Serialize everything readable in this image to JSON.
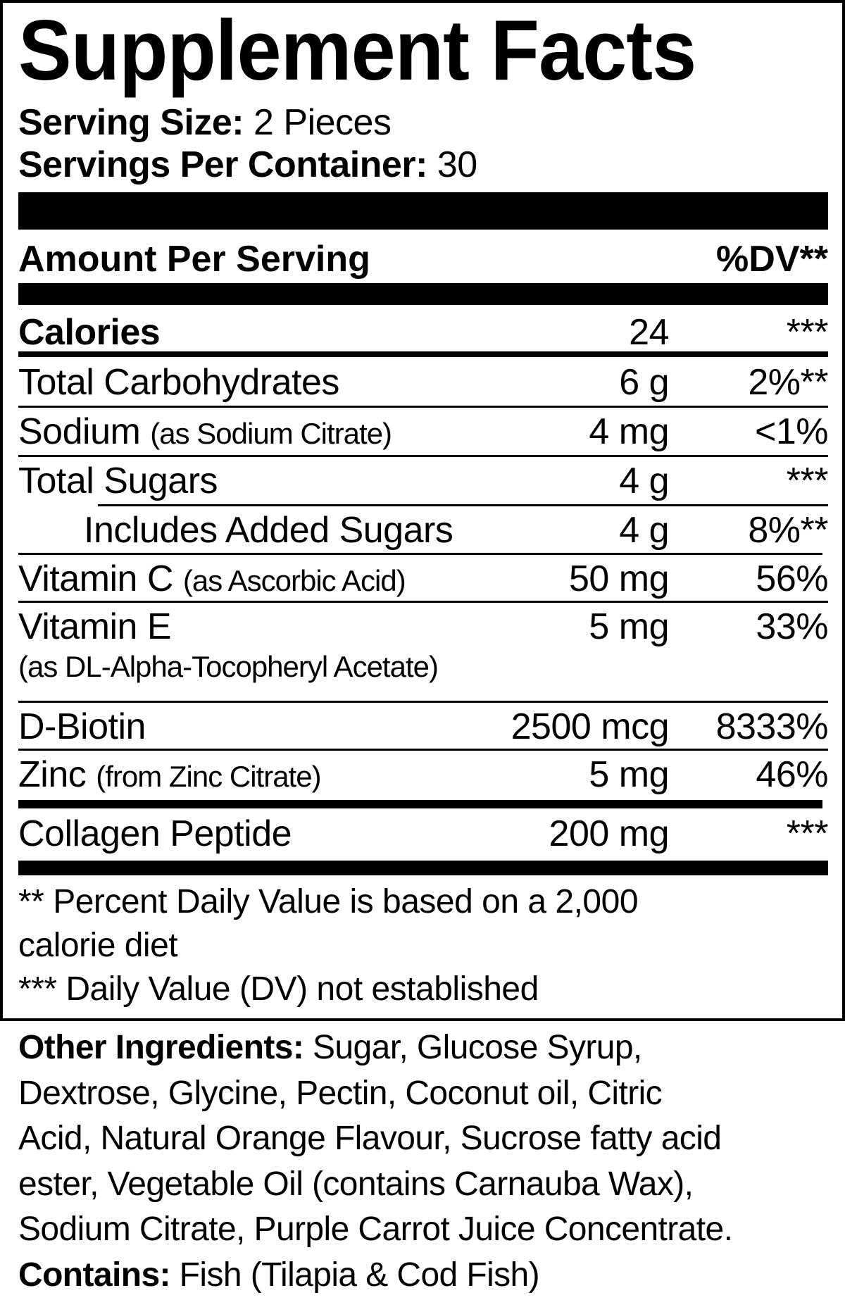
{
  "title": "Supplement Facts",
  "serving_size": {
    "label": "Serving Size:",
    "value": "2 Pieces"
  },
  "servings_per_container": {
    "label": "Servings Per Container:",
    "value": "30"
  },
  "header": {
    "amount_per_serving": "Amount Per Serving",
    "dv": "%DV**"
  },
  "rows": [
    {
      "label": "Calories",
      "sub": "",
      "amount": "24",
      "dv": "***",
      "bold": true
    },
    {
      "label": "Total Carbohydrates",
      "sub": "",
      "amount": "6 g",
      "dv": "2%**"
    },
    {
      "label": "Sodium",
      "sub": "(as Sodium Citrate)",
      "amount": "4 mg",
      "dv": "<1%"
    },
    {
      "label": "Total Sugars",
      "sub": "",
      "amount": "4 g",
      "dv": "***"
    },
    {
      "label": "Includes Added Sugars",
      "sub": "",
      "amount": "4 g",
      "dv": "8%**",
      "indent": true
    },
    {
      "label": "Vitamin C",
      "sub": "(as Ascorbic Acid)",
      "amount": "50 mg",
      "dv": "56%"
    },
    {
      "label": "Vitamin E",
      "sub": "",
      "line2": "(as DL-Alpha-Tocopheryl Acetate)",
      "amount": "5 mg",
      "dv": "33%"
    },
    {
      "label": "D-Biotin",
      "sub": "",
      "amount": "2500 mcg",
      "dv": "8333%"
    },
    {
      "label": "Zinc",
      "sub": "(from Zinc Citrate)",
      "amount": "5 mg",
      "dv": "46%"
    },
    {
      "label": "Collagen Peptide",
      "sub": "",
      "amount": "200 mg",
      "dv": "***"
    }
  ],
  "footnotes": [
    "** Percent Daily Value is based on a 2,000",
    "calorie diet",
    "*** Daily Value (DV) not established"
  ],
  "other_ingredients": {
    "label": "Other Ingredients:",
    "lines": [
      "Sugar, Glucose Syrup,",
      "Dextrose, Glycine, Pectin, Coconut oil, Citric",
      "Acid, Natural Orange Flavour, Sucrose fatty acid",
      "ester, Vegetable Oil (contains Carnauba Wax),",
      "Sodium Citrate, Purple Carrot Juice Concentrate."
    ]
  },
  "contains": {
    "label": "Contains:",
    "value": "Fish (Tilapia & Cod Fish)"
  }
}
